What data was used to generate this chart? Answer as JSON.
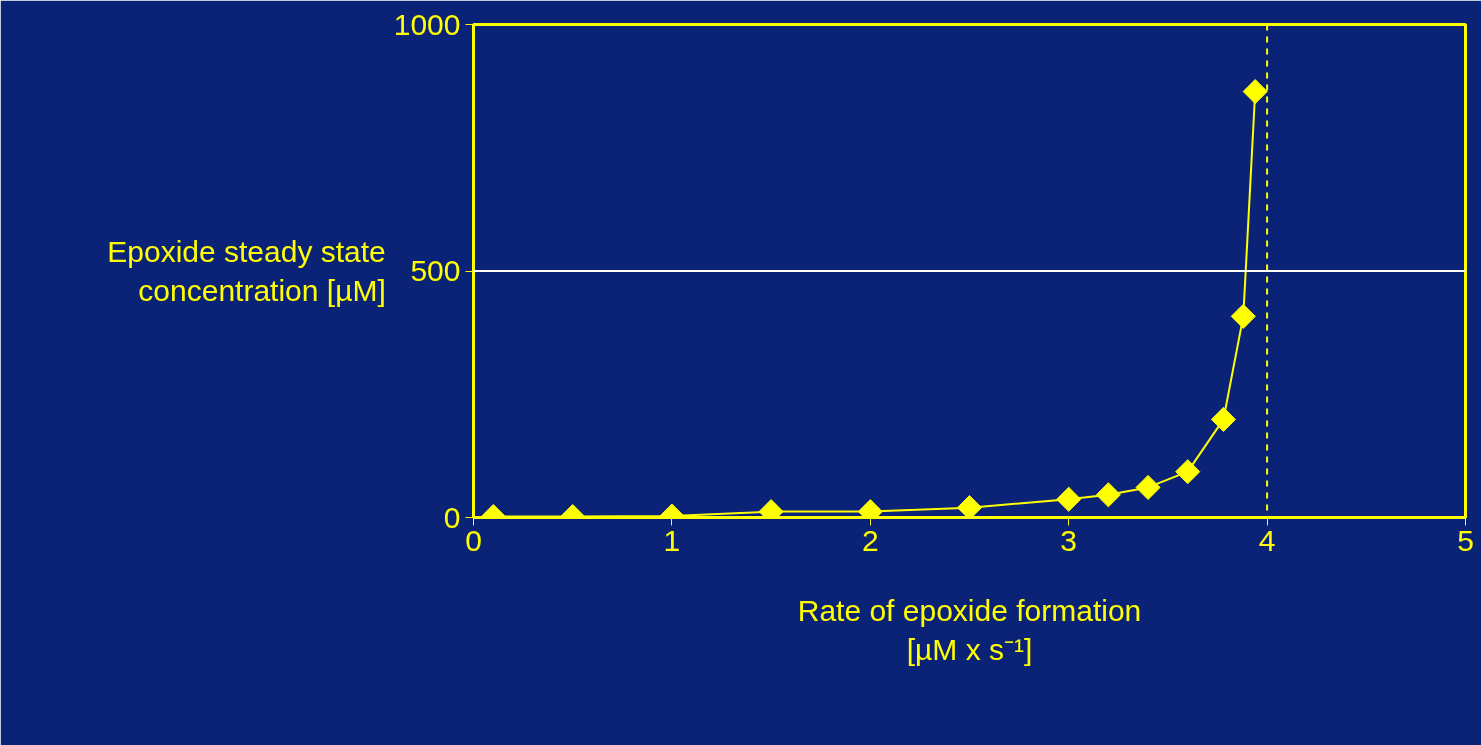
{
  "chart_data": {
    "type": "line",
    "xlabel": "Rate of epoxide formation\n[µM x s⁻¹]",
    "ylabel": "Epoxide steady state\nconcentration [µM]",
    "x": [
      0.1,
      0.5,
      1,
      1.5,
      2,
      2.5,
      3,
      3.2,
      3.4,
      3.6,
      3.78,
      3.88,
      3.94
    ],
    "series": [
      {
        "color": "#ffff00",
        "values": [
          2,
          2,
          3,
          12,
          12,
          20,
          37,
          46,
          61,
          93,
          199,
          408,
          864
        ]
      }
    ],
    "xlim": [
      0,
      5
    ],
    "xticks": [
      0,
      1,
      2,
      3,
      4,
      5
    ],
    "ylim": [
      0,
      1000
    ],
    "yticks": [
      0,
      500,
      1000
    ],
    "marker": "diamond",
    "line_style": "solid",
    "ref_lines": [
      {
        "axis": "x",
        "value": 4,
        "color": "#ffff00",
        "line_style": "dashed"
      },
      {
        "axis": "y",
        "value": 500,
        "color": "#ffffff",
        "line_style": "solid"
      }
    ]
  }
}
